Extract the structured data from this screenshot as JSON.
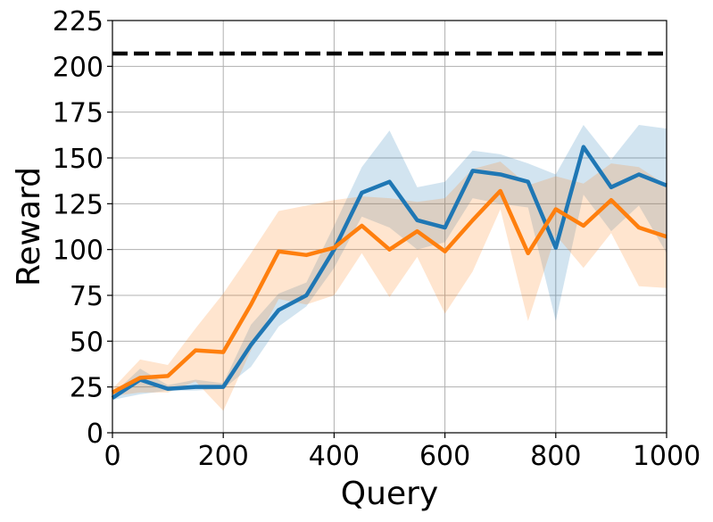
{
  "chart_data": {
    "type": "line",
    "xlabel": "Query",
    "ylabel": "Reward",
    "xlim": [
      0,
      1000
    ],
    "ylim": [
      0,
      225
    ],
    "xticks": [
      0,
      200,
      400,
      600,
      800,
      1000
    ],
    "yticks": [
      0,
      25,
      50,
      75,
      100,
      125,
      150,
      175,
      200,
      225
    ],
    "grid": true,
    "reference_line": {
      "y": 207,
      "style": "dashed",
      "color": "#000000"
    },
    "x": [
      0,
      50,
      100,
      150,
      200,
      250,
      300,
      350,
      400,
      450,
      500,
      550,
      600,
      650,
      700,
      750,
      800,
      850,
      900,
      950,
      1000
    ],
    "series": [
      {
        "color": "#1f77b4",
        "values": [
          19,
          29,
          24,
          25,
          25,
          48,
          67,
          75,
          100,
          131,
          137,
          116,
          112,
          143,
          141,
          137,
          101,
          156,
          134,
          141,
          135
        ],
        "lower": [
          18,
          21,
          23,
          23,
          24,
          36,
          58,
          69,
          90,
          118,
          112,
          100,
          104,
          128,
          125,
          123,
          61,
          130,
          110,
          124,
          98
        ],
        "upper": [
          21,
          35,
          26,
          29,
          27,
          59,
          76,
          82,
          113,
          145,
          165,
          134,
          137,
          154,
          152,
          147,
          141,
          168,
          149,
          168,
          166
        ]
      },
      {
        "color": "#ff7f0e",
        "values": [
          22,
          30,
          31,
          45,
          44,
          70,
          99,
          97,
          101,
          113,
          100,
          110,
          99,
          116,
          132,
          98,
          122,
          113,
          127,
          112,
          107
        ],
        "lower": [
          20,
          22,
          22,
          28,
          12,
          45,
          73,
          70,
          75,
          98,
          74,
          96,
          65,
          88,
          122,
          61,
          108,
          90,
          109,
          80,
          79
        ],
        "upper": [
          24,
          40,
          37,
          57,
          76,
          98,
          121,
          124,
          127,
          129,
          128,
          126,
          128,
          144,
          148,
          135,
          140,
          136,
          147,
          145,
          135
        ]
      }
    ]
  }
}
